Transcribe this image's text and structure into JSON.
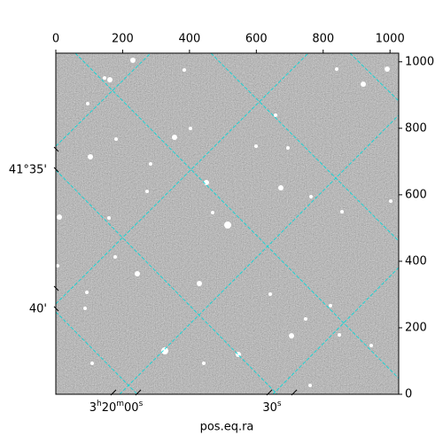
{
  "chart_data": {
    "type": "image",
    "x_label": "pos.eq.ra",
    "xlim": [
      0,
      1026
    ],
    "xticks": [
      0,
      200,
      400,
      600,
      800,
      1000
    ],
    "ylim": [
      0,
      1026
    ],
    "yticks": [
      0,
      200,
      400,
      600,
      800,
      1000
    ],
    "ra_ticks": [
      "3h20m00s",
      "30s"
    ],
    "dec_ticks": [
      "41°35'",
      "40'"
    ]
  }
}
